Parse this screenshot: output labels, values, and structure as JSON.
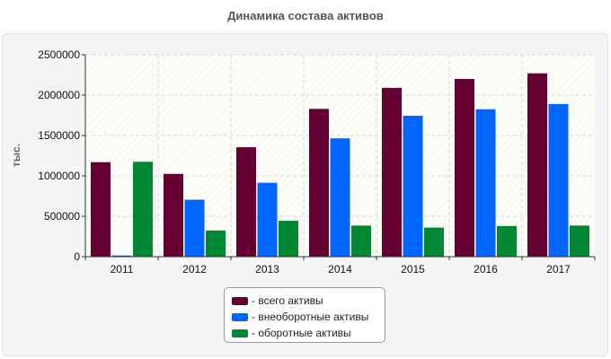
{
  "chart_data": {
    "type": "bar",
    "title": "Динамика состава активов",
    "ylabel": "тыс.",
    "xlabel": "",
    "categories": [
      "2011",
      "2012",
      "2013",
      "2014",
      "2015",
      "2016",
      "2017"
    ],
    "ylim": [
      0,
      2500000
    ],
    "yticks": [
      0,
      500000,
      1000000,
      1500000,
      2000000,
      2500000
    ],
    "grid": true,
    "legend_position": "bottom",
    "series": [
      {
        "name": "- всего активы",
        "color": "#660033",
        "values": [
          1170000,
          1025000,
          1355000,
          1830000,
          2090000,
          2200000,
          2270000
        ]
      },
      {
        "name": "- внеоборотные активы",
        "color": "#0066ff",
        "values": [
          15000,
          705000,
          915000,
          1465000,
          1745000,
          1825000,
          1890000
        ]
      },
      {
        "name": "- оборотные активы",
        "color": "#008833",
        "values": [
          1175000,
          325000,
          445000,
          385000,
          360000,
          380000,
          385000
        ]
      }
    ]
  }
}
